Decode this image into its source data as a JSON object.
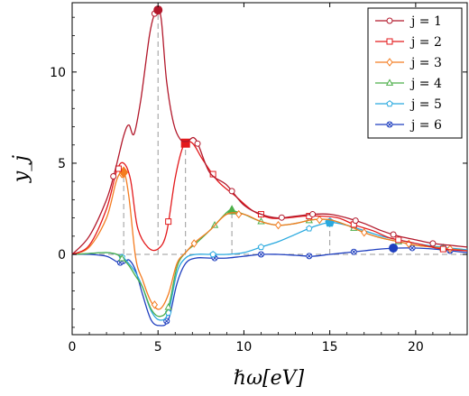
{
  "chart_data": {
    "type": "line",
    "title": "",
    "xlabel": "ℏω[eV]",
    "ylabel": "y_j",
    "xlim": [
      0,
      23
    ],
    "ylim": [
      -4.4,
      13.8
    ],
    "xticks": [
      0,
      5,
      10,
      15,
      20
    ],
    "yticks": [
      0,
      5,
      10
    ],
    "legend_position": "top-right",
    "series": [
      {
        "name": "j = 1",
        "color": "#b2182b",
        "marker": "circle",
        "x": [
          0,
          1,
          2,
          2.5,
          3,
          3.3,
          3.6,
          4.0,
          4.5,
          4.8,
          5.0,
          5.2,
          5.5,
          5.9,
          6.3,
          6.7,
          7.2,
          8,
          9,
          10,
          11,
          12,
          13,
          14,
          15,
          16,
          17,
          18,
          19,
          20,
          21,
          22,
          23
        ],
        "y": [
          0,
          1.0,
          3.0,
          4.6,
          6.5,
          7.1,
          6.6,
          8.5,
          12.0,
          13.2,
          13.4,
          12.8,
          9.5,
          7.2,
          6.3,
          6.2,
          6.3,
          4.5,
          3.8,
          2.7,
          2.2,
          2.0,
          2.1,
          2.2,
          2.2,
          2.0,
          1.7,
          1.3,
          1.0,
          0.8,
          0.6,
          0.5,
          0.4
        ],
        "markers_x": [
          2.4,
          4.8,
          5.0,
          7.3,
          9.3,
          12.2,
          14.0,
          16.5,
          18.7,
          21.0
        ],
        "highlight": [
          5.0,
          13.4
        ]
      },
      {
        "name": "j = 2",
        "color": "#e31a1c",
        "marker": "square",
        "x": [
          0,
          1,
          2,
          2.6,
          3.0,
          3.4,
          3.8,
          4.4,
          5.0,
          5.5,
          6.0,
          6.5,
          7.0,
          7.6,
          8.5,
          9.5,
          10.5,
          11.5,
          12.5,
          13.5,
          14.5,
          15.5,
          16.5,
          17.5,
          18.5,
          19.5,
          20.5,
          21.5,
          23
        ],
        "y": [
          0,
          0.5,
          2.5,
          4.6,
          5.0,
          4.1,
          1.5,
          0.4,
          0.3,
          1.2,
          4.2,
          6.0,
          6.1,
          5.2,
          4.0,
          3.2,
          2.4,
          2.0,
          2.0,
          2.1,
          2.1,
          2.0,
          1.6,
          1.3,
          0.9,
          0.7,
          0.5,
          0.3,
          0.2
        ],
        "markers_x": [
          2.7,
          5.6,
          8.2,
          11.0,
          13.8,
          16.4,
          19.0,
          21.6
        ],
        "highlight": [
          6.6,
          6.1
        ]
      },
      {
        "name": "j = 3",
        "color": "#f47c20",
        "marker": "diamond",
        "x": [
          0,
          1,
          2,
          2.6,
          3.0,
          3.3,
          3.7,
          4.1,
          4.6,
          5.1,
          5.6,
          6.1,
          6.6,
          7.2,
          8,
          9,
          10,
          11,
          12,
          13,
          14,
          15,
          16,
          17,
          18,
          19,
          20,
          21,
          22,
          23
        ],
        "y": [
          0,
          0.4,
          2.0,
          4.1,
          4.5,
          3.2,
          -0.2,
          -1.4,
          -2.6,
          -3.0,
          -2.2,
          -0.5,
          0.1,
          0.7,
          1.3,
          2.2,
          2.2,
          1.8,
          1.6,
          1.7,
          1.9,
          1.9,
          1.6,
          1.2,
          0.9,
          0.7,
          0.5,
          0.4,
          0.3,
          0.2
        ],
        "markers_x": [
          2.9,
          4.8,
          7.1,
          9.7,
          12.0,
          14.4,
          17.0,
          19.6,
          22.0
        ],
        "highlight": [
          3.0,
          4.5
        ]
      },
      {
        "name": "j = 4",
        "color": "#4daf4a",
        "marker": "triangle",
        "x": [
          0,
          1,
          2,
          2.6,
          3.0,
          3.3,
          3.7,
          4.1,
          4.6,
          5.1,
          5.6,
          6.1,
          6.6,
          7.2,
          8,
          9,
          9.3,
          10,
          11,
          12,
          13,
          14,
          15,
          16,
          17,
          18,
          19,
          20,
          21,
          22,
          23
        ],
        "y": [
          0,
          0.05,
          0.1,
          0.0,
          -0.3,
          -0.6,
          -1.2,
          -1.8,
          -3.0,
          -3.4,
          -2.9,
          -0.7,
          0.1,
          0.6,
          1.3,
          2.3,
          2.4,
          2.2,
          1.8,
          1.6,
          1.7,
          1.9,
          1.9,
          1.6,
          1.2,
          0.9,
          0.7,
          0.5,
          0.4,
          0.3,
          0.2
        ],
        "markers_x": [
          2.9,
          5.6,
          8.3,
          11.0,
          13.8,
          16.4,
          19.0,
          21.6
        ],
        "highlight": [
          9.3,
          2.4
        ]
      },
      {
        "name": "j = 5",
        "color": "#29a9df",
        "marker": "pentagon",
        "x": [
          0,
          1,
          2,
          2.6,
          3.0,
          3.3,
          3.7,
          4.1,
          4.6,
          5.1,
          5.6,
          6.1,
          6.6,
          7.2,
          8,
          9,
          10,
          11,
          12,
          13,
          14,
          15,
          16,
          17,
          18,
          19,
          20,
          21,
          22,
          23
        ],
        "y": [
          0,
          0.05,
          0.1,
          0.0,
          -0.2,
          -0.5,
          -1.0,
          -1.8,
          -3.1,
          -3.6,
          -3.2,
          -1.0,
          -0.2,
          0.0,
          0.0,
          0.0,
          0.1,
          0.4,
          0.7,
          1.1,
          1.5,
          1.75,
          1.6,
          1.3,
          1.0,
          0.8,
          0.6,
          0.45,
          0.35,
          0.25
        ],
        "markers_x": [
          2.9,
          5.6,
          8.2,
          11.0,
          13.8,
          16.4,
          19.0,
          21.6
        ],
        "highlight": [
          15.0,
          1.75
        ]
      },
      {
        "name": "j = 6",
        "color": "#1f3fbf",
        "marker": "circle-x",
        "x": [
          0,
          1,
          2,
          2.6,
          3.0,
          3.3,
          3.7,
          4.1,
          4.6,
          5.1,
          5.6,
          6.1,
          6.6,
          7.2,
          8,
          9,
          10,
          11,
          12,
          13,
          14,
          15,
          16,
          17,
          18,
          19,
          20,
          21,
          22,
          23
        ],
        "y": [
          0,
          0.0,
          -0.1,
          -0.4,
          -0.5,
          -0.3,
          -0.9,
          -2.2,
          -3.6,
          -3.9,
          -3.6,
          -1.6,
          -0.5,
          -0.2,
          -0.2,
          -0.2,
          -0.1,
          0.0,
          0.0,
          -0.05,
          -0.1,
          0.0,
          0.1,
          0.2,
          0.3,
          0.35,
          0.35,
          0.3,
          0.2,
          0.1
        ],
        "markers_x": [
          2.8,
          5.5,
          8.3,
          11.0,
          13.8,
          16.4,
          19.8,
          22.0
        ],
        "highlight": [
          18.7,
          0.35
        ]
      }
    ]
  }
}
